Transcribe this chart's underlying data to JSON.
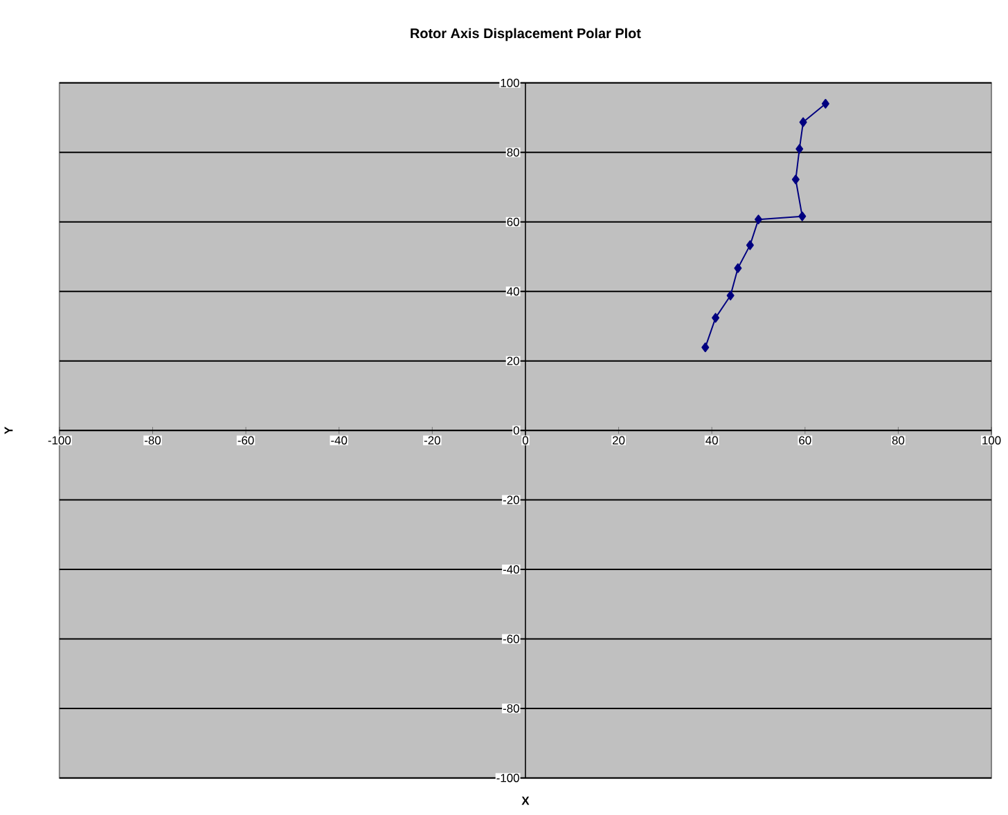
{
  "chart_data": {
    "type": "line",
    "title": "Rotor Axis Displacement Polar Plot",
    "xlabel": "X",
    "ylabel": "Y",
    "x": [
      38.6,
      40.8,
      44.0,
      45.6,
      48.2,
      50.0,
      59.4,
      58.0,
      58.8,
      59.6,
      64.4
    ],
    "series": [
      {
        "color": "#000080",
        "values": [
          23.9,
          32.4,
          38.8,
          46.7,
          53.3,
          60.7,
          61.6,
          72.2,
          81.0,
          88.7,
          94.0
        ]
      }
    ],
    "xlim": [
      -100,
      100
    ],
    "ylim": [
      -100,
      100
    ],
    "xticks": [
      -100,
      -80,
      -60,
      -40,
      -20,
      0,
      20,
      40,
      60,
      80,
      100
    ],
    "yticks": [
      -100,
      -80,
      -60,
      -40,
      -20,
      0,
      20,
      40,
      60,
      80,
      100
    ],
    "grid": "y",
    "marker": "diamond",
    "line_style": "solid"
  }
}
